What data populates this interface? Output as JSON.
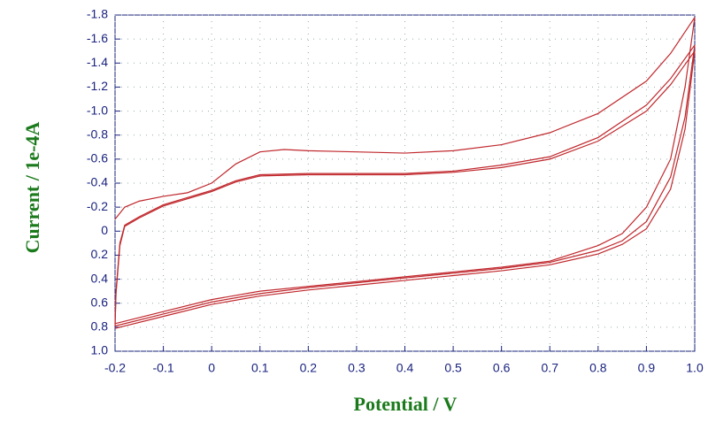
{
  "chart_data": {
    "type": "line",
    "x_label": "Potential / V",
    "y_label": "Current / 1e-4A",
    "xlim": [
      -0.2,
      1.0
    ],
    "xticks": [
      -0.2,
      -0.1,
      0,
      0.1,
      0.2,
      0.3,
      0.4,
      0.5,
      0.6,
      0.7,
      0.8,
      0.9,
      {
        "value": 1,
        "label": "1.0"
      }
    ],
    "ylim": [
      1,
      -1.8
    ],
    "yticks": [
      -1.8,
      -1.6,
      -1.4,
      -1.2,
      {
        "value": -1,
        "label": "-1.0"
      },
      -0.8,
      -0.6,
      -0.4,
      -0.2,
      0,
      0.2,
      0.4,
      0.6,
      0.8,
      {
        "value": 1,
        "label": "1.0"
      }
    ],
    "grid": true,
    "series": [
      {
        "color": "#c0282d",
        "x": [
          -0.2,
          -0.18,
          -0.15,
          -0.1,
          -0.05,
          0,
          0.05,
          0.1,
          0.15,
          0.2,
          0.3,
          0.4,
          0.5,
          0.6,
          0.7,
          0.8,
          0.9,
          0.95,
          1.0,
          0.98,
          0.95,
          0.9,
          0.85,
          0.8,
          0.7,
          0.6,
          0.5,
          0.4,
          0.3,
          0.2,
          0.1,
          0,
          -0.1,
          -0.2
        ],
        "values": [
          -0.1,
          -0.2,
          -0.25,
          -0.29,
          -0.32,
          -0.4,
          -0.56,
          -0.66,
          -0.68,
          -0.67,
          -0.66,
          -0.65,
          -0.67,
          -0.72,
          -0.82,
          -0.98,
          -1.25,
          -1.48,
          -1.78,
          -1.2,
          -0.6,
          -0.2,
          0.02,
          0.12,
          0.25,
          0.3,
          0.34,
          0.38,
          0.42,
          0.46,
          0.5,
          0.57,
          0.67,
          0.77
        ]
      },
      {
        "color": "#c0282d",
        "x": [
          -0.2,
          -0.198,
          -0.19,
          -0.18,
          -0.15,
          -0.1,
          -0.05,
          0,
          0.05,
          0.1,
          0.2,
          0.3,
          0.4,
          0.5,
          0.6,
          0.7,
          0.8,
          0.9,
          0.95,
          1.0,
          0.98,
          0.95,
          0.9,
          0.85,
          0.8,
          0.7,
          0.6,
          0.5,
          0.4,
          0.3,
          0.2,
          0.1,
          0,
          -0.1,
          -0.2
        ],
        "values": [
          0.77,
          0.5,
          0.1,
          -0.05,
          -0.12,
          -0.22,
          -0.28,
          -0.34,
          -0.42,
          -0.47,
          -0.48,
          -0.48,
          -0.48,
          -0.5,
          -0.55,
          -0.62,
          -0.78,
          -1.05,
          -1.27,
          -1.55,
          -0.95,
          -0.45,
          -0.08,
          0.08,
          0.16,
          0.26,
          0.31,
          0.35,
          0.39,
          0.43,
          0.47,
          0.52,
          0.59,
          0.69,
          0.79
        ]
      },
      {
        "color": "#c0282d",
        "x": [
          -0.2,
          -0.198,
          -0.19,
          -0.18,
          -0.15,
          -0.1,
          -0.05,
          0,
          0.05,
          0.1,
          0.2,
          0.3,
          0.4,
          0.5,
          0.6,
          0.7,
          0.8,
          0.9,
          0.95,
          1.0,
          0.98,
          0.95,
          0.9,
          0.85,
          0.8,
          0.7,
          0.6,
          0.5,
          0.4,
          0.3,
          0.2,
          0.1,
          0,
          -0.1,
          -0.2
        ],
        "values": [
          0.79,
          0.52,
          0.12,
          -0.04,
          -0.11,
          -0.21,
          -0.27,
          -0.33,
          -0.41,
          -0.46,
          -0.47,
          -0.47,
          -0.47,
          -0.49,
          -0.53,
          -0.6,
          -0.75,
          -1.0,
          -1.22,
          -1.5,
          -0.85,
          -0.35,
          -0.02,
          0.11,
          0.19,
          0.28,
          0.33,
          0.37,
          0.41,
          0.45,
          0.49,
          0.54,
          0.61,
          0.71,
          0.81
        ]
      }
    ]
  }
}
